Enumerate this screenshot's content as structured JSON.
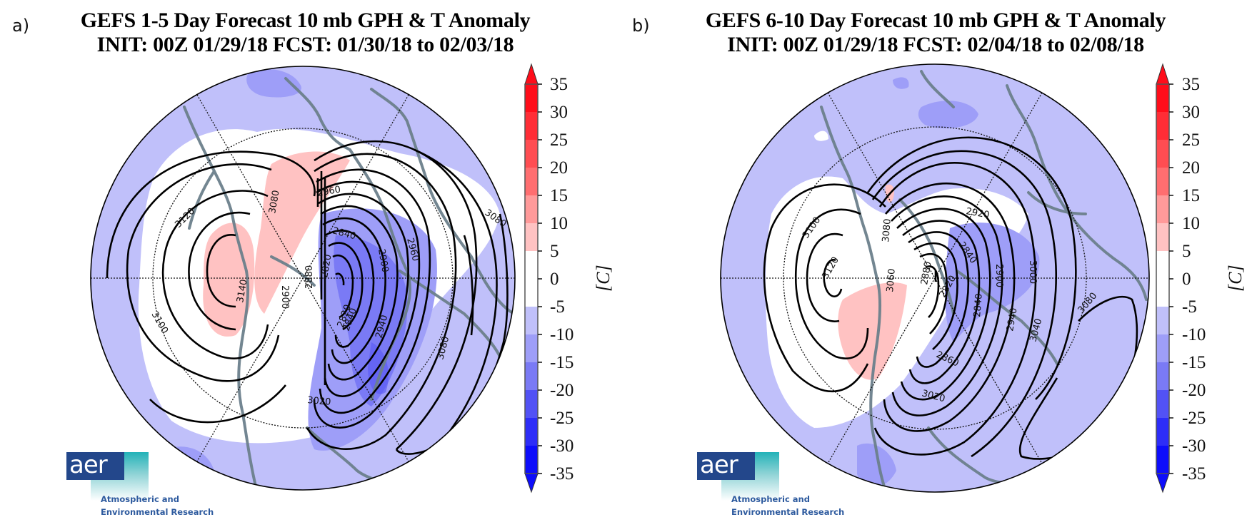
{
  "panels": [
    {
      "label": "a)",
      "title_line1": "GEFS 1-5 Day Forecast 10 mb GPH & T Anomaly",
      "title_line2": "INIT: 00Z 01/29/18   FCST: 01/30/18 to 02/03/18",
      "contour_labels": [
        "3120",
        "3100",
        "3140",
        "3080",
        "2960",
        "2900",
        "2840",
        "2880",
        "2820",
        "2820",
        "2840",
        "2960",
        "2900",
        "2940",
        "3020",
        "3080",
        "3080",
        "3000"
      ]
    },
    {
      "label": "b)",
      "title_line1": "GEFS 6-10 Day Forecast 10 mb GPH & T Anomaly",
      "title_line2": "INIT: 00Z 01/29/18   FCST: 02/04/18 to 02/08/18",
      "contour_labels": [
        "3100",
        "3120",
        "3080",
        "3060",
        "2920",
        "2840",
        "2880",
        "2820",
        "2840",
        "2900",
        "2940",
        "3000",
        "3040",
        "3080",
        "2860",
        "3020",
        "2960"
      ]
    }
  ],
  "colorbar": {
    "unit": "[C]",
    "ticks": [
      "35",
      "30",
      "25",
      "20",
      "15",
      "10",
      "5",
      "0",
      "-5",
      "-10",
      "-15",
      "-20",
      "-25",
      "-30",
      "-35"
    ],
    "bins": [
      {
        "range": "30 to 35+",
        "color": "#ff0d1a"
      },
      {
        "range": "25 to 30",
        "color": "#ff2d36"
      },
      {
        "range": "20 to 25",
        "color": "#ff4d52"
      },
      {
        "range": "15 to 20",
        "color": "#ff6e70"
      },
      {
        "range": "10 to 15",
        "color": "#ff9a9a"
      },
      {
        "range": "5 to 10",
        "color": "#ffc2c2"
      },
      {
        "range": "-5 to 5",
        "color": "#ffffff"
      },
      {
        "range": "-10 to -5",
        "color": "#c0c0fa"
      },
      {
        "range": "-15 to -10",
        "color": "#9e9ef8"
      },
      {
        "range": "-20 to -15",
        "color": "#7a7af5"
      },
      {
        "range": "-25 to -20",
        "color": "#5252f5"
      },
      {
        "range": "-30 to -25",
        "color": "#2d2df8"
      },
      {
        "range": "-35- to -30",
        "color": "#0d0dfb"
      }
    ]
  },
  "logo": {
    "wordmark": "aer",
    "tagline_line1": "Atmospheric and",
    "tagline_line2": "Environmental Research"
  },
  "chart_data": [
    {
      "type": "heatmap",
      "title": "GEFS 1-5 Day Forecast 10 mb GPH & T Anomaly",
      "subtitle": "INIT: 00Z 01/29/18   FCST: 01/30/18 to 02/03/18",
      "projection": "north polar stereographic",
      "field_shaded": "10 mb temperature anomaly [C]",
      "field_contoured": "10 mb geopotential height [dam]",
      "colorbar_range": [
        -35,
        35
      ],
      "colorbar_interval": 5,
      "contour_levels_labeled": [
        2820,
        2840,
        2880,
        2900,
        2940,
        2960,
        3000,
        3020,
        3080,
        3100,
        3120,
        3140
      ],
      "features": {
        "low_center_gph": 2820,
        "high_center_gph": 3140,
        "warm_anomaly": "+5 to +10 C over western side of vortex",
        "cold_anomaly": "-10 to -20 C within main low"
      },
      "legend": "right"
    },
    {
      "type": "heatmap",
      "title": "GEFS 6-10 Day Forecast 10 mb GPH & T Anomaly",
      "subtitle": "INIT: 00Z 01/29/18   FCST: 02/04/18 to 02/08/18",
      "projection": "north polar stereographic",
      "field_shaded": "10 mb temperature anomaly [C]",
      "field_contoured": "10 mb geopotential height [dam]",
      "colorbar_range": [
        -35,
        35
      ],
      "colorbar_interval": 5,
      "contour_levels_labeled": [
        2820,
        2840,
        2860,
        2880,
        2900,
        2920,
        2940,
        2960,
        3000,
        3020,
        3040,
        3060,
        3080,
        3100,
        3120
      ],
      "features": {
        "low_center_gph": 2820,
        "high_center_gph": 3120,
        "warm_anomaly": "+5 to +10 C southwest of vortex",
        "cold_anomaly": "-10 to -15 C within main low"
      },
      "legend": "right"
    }
  ]
}
